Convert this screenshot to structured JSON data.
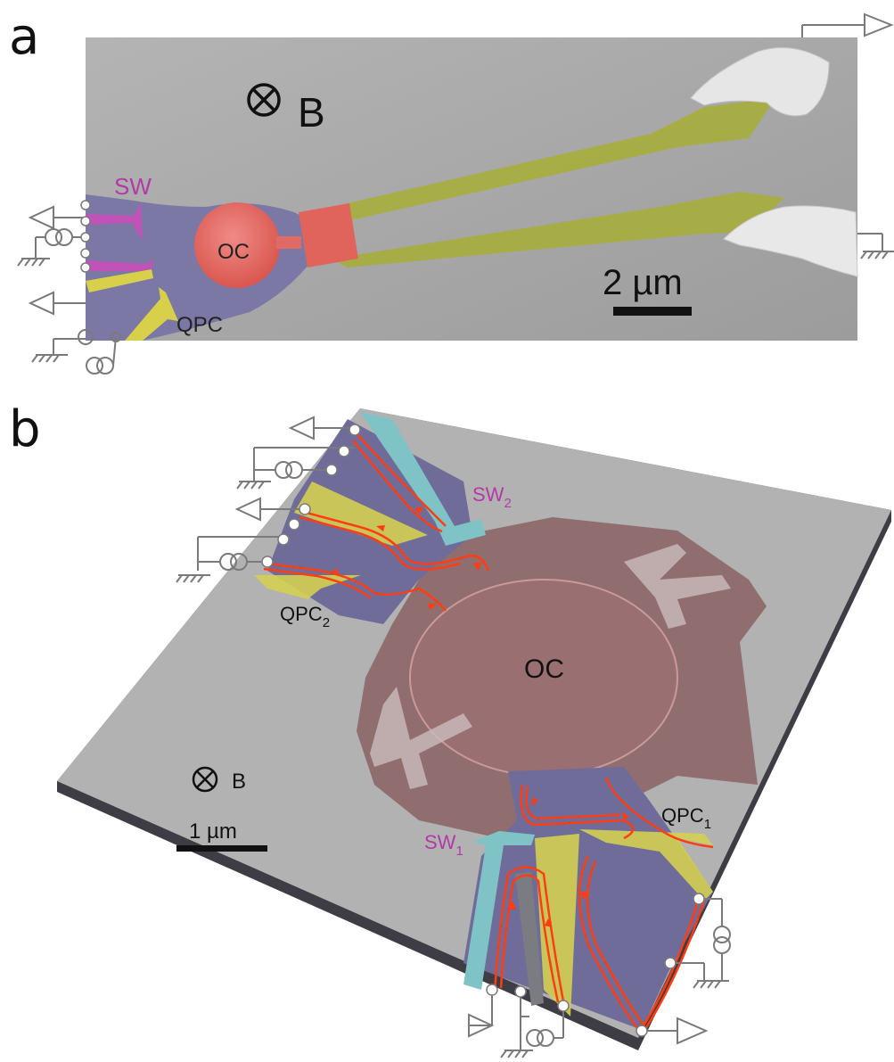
{
  "figure": {
    "panel_a": {
      "letter": "a",
      "field_label": "B",
      "scale_bar_label": "2 µm",
      "labels": {
        "oc": "OC",
        "sw": "SW",
        "qpc": "QPC"
      }
    },
    "panel_b": {
      "letter": "b",
      "field_label": "B",
      "scale_bar_label": "1 µm",
      "labels": {
        "oc": "OC",
        "sw2": "SW",
        "sw2_sub": "2",
        "sw1": "SW",
        "sw1_sub": "1",
        "qpc2": "QPC",
        "qpc2_sub": "2",
        "qpc1": "QPC",
        "qpc1_sub": "1"
      }
    },
    "colors": {
      "sem_gray": "#a9a9a9",
      "mesa_purple": "#7c78a6",
      "gate_sw": "#c052b8",
      "gate_qpc": "#d8cf4a",
      "island_oc": "#e86b6b",
      "lead_green": "#a7ae3c",
      "sw_cyan": "#7fc3c7",
      "edge_channel": "#ff3d12",
      "label_magenta": "#b23aa6",
      "circuit_gray": "#7a7a7a"
    }
  }
}
